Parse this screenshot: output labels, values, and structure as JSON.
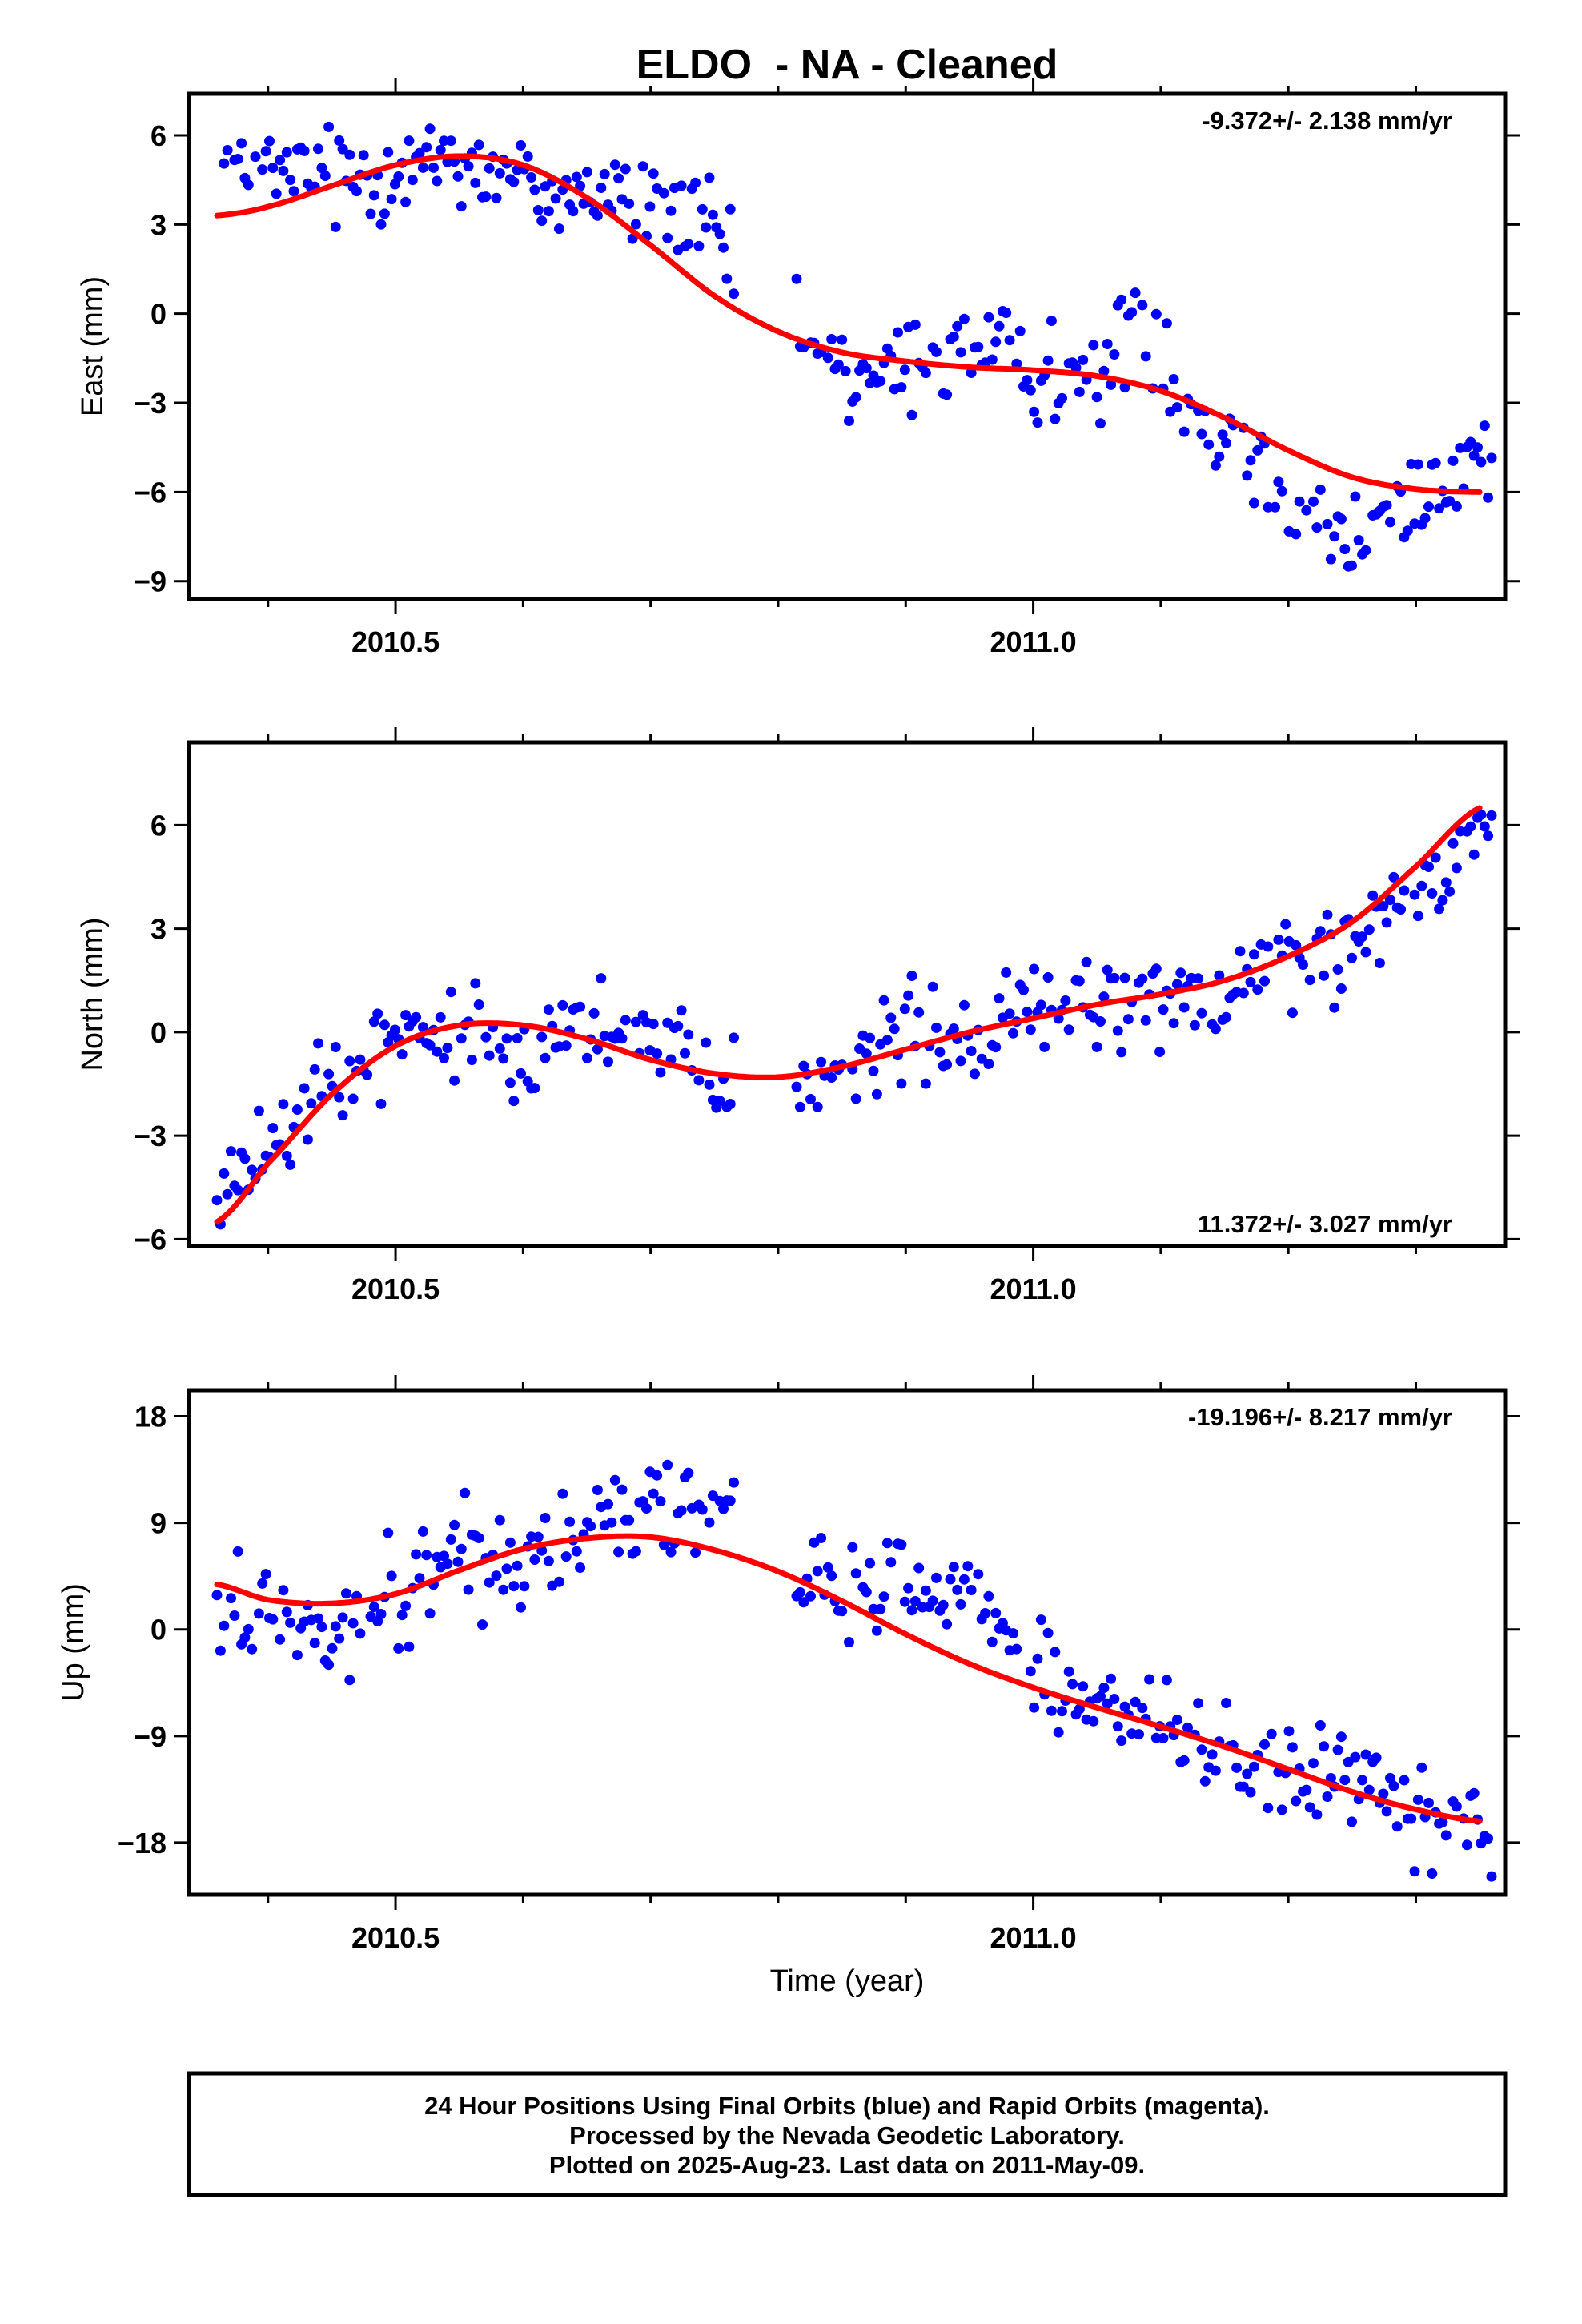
{
  "page": {
    "title": "ELDO  - NA - Cleaned",
    "x_axis_label": "Time (year)",
    "footer_lines": [
      "24 Hour Positions Using Final Orbits (blue) and Rapid Orbits (magenta).",
      "Processed by the Nevada Geodetic Laboratory.",
      "Plotted on 2025-Aug-23. Last data on 2011-May-09."
    ]
  },
  "colors": {
    "points": "#0000ff",
    "fit": "#ff0000",
    "frame": "#000000"
  },
  "chart_data": [
    {
      "type": "scatter",
      "name": "east",
      "ylabel": "East (mm)",
      "rate_text": "-9.372+/- 2.138 mm/yr",
      "rate_position": "top-right",
      "xlim": [
        2010.338,
        2011.37
      ],
      "ylim": [
        -9.6,
        7.4
      ],
      "xticks": [
        2010.5,
        2011.0
      ],
      "xtick_labels": [
        "2010.5",
        "2011.0"
      ],
      "xminor": [
        2010.4,
        2010.6,
        2010.7,
        2010.8,
        2010.9,
        2011.1,
        2011.2,
        2011.3
      ],
      "yticks": [
        6,
        3,
        0,
        -3,
        -6,
        -9
      ],
      "ytick_labels": [
        "6",
        "3",
        "0",
        "−3",
        "−6",
        "−9"
      ],
      "gaps": [
        [
          2010.767,
          2010.812
        ]
      ],
      "fit": {
        "x": [
          2010.36,
          2010.4,
          2010.45,
          2010.5,
          2010.55,
          2010.6,
          2010.65,
          2010.7,
          2010.75,
          2010.8,
          2010.85,
          2010.9,
          2010.95,
          2011.0,
          2011.05,
          2011.1,
          2011.15,
          2011.2,
          2011.25,
          2011.3,
          2011.35
        ],
        "y": [
          3.3,
          3.6,
          4.3,
          5.0,
          5.3,
          5.0,
          3.9,
          2.3,
          0.6,
          -0.6,
          -1.3,
          -1.6,
          -1.8,
          -1.9,
          -2.1,
          -2.6,
          -3.5,
          -4.6,
          -5.5,
          -5.9,
          -6.0
        ]
      },
      "anchors": {
        "x": [
          2010.36,
          2010.45,
          2010.5,
          2010.55,
          2010.6,
          2010.65,
          2010.7,
          2010.75,
          2010.8,
          2010.85,
          2010.9,
          2010.95,
          2011.0,
          2011.05,
          2011.08,
          2011.12,
          2011.15,
          2011.2,
          2011.25,
          2011.3,
          2011.35
        ],
        "y": [
          4.8,
          4.6,
          5.0,
          5.4,
          4.3,
          4.2,
          3.5,
          2.8,
          -0.5,
          -2.2,
          -2.0,
          -0.8,
          -1.8,
          -2.5,
          0.3,
          -2.8,
          -4.0,
          -6.0,
          -7.6,
          -6.2,
          -4.8
        ]
      },
      "scatter_amplitude": 1.4
    },
    {
      "type": "scatter",
      "name": "north",
      "ylabel": "North (mm)",
      "rate_text": "11.372+/- 3.027 mm/yr",
      "rate_position": "bottom-right",
      "xlim": [
        2010.338,
        2011.37
      ],
      "ylim": [
        -6.2,
        8.4
      ],
      "xticks": [
        2010.5,
        2011.0
      ],
      "xtick_labels": [
        "2010.5",
        "2011.0"
      ],
      "xminor": [
        2010.4,
        2010.6,
        2010.7,
        2010.8,
        2010.9,
        2011.1,
        2011.2,
        2011.3
      ],
      "yticks": [
        6,
        3,
        0,
        -3,
        -6
      ],
      "ytick_labels": [
        "6",
        "3",
        "0",
        "−3",
        "−6"
      ],
      "gaps": [
        [
          2010.767,
          2010.812
        ]
      ],
      "fit": {
        "x": [
          2010.36,
          2010.4,
          2010.45,
          2010.5,
          2010.55,
          2010.6,
          2010.65,
          2010.7,
          2010.75,
          2010.8,
          2010.85,
          2010.9,
          2010.95,
          2011.0,
          2011.05,
          2011.1,
          2011.15,
          2011.2,
          2011.25,
          2011.3,
          2011.35
        ],
        "y": [
          -5.5,
          -3.8,
          -1.8,
          -0.4,
          0.2,
          0.2,
          -0.2,
          -0.8,
          -1.2,
          -1.3,
          -1.0,
          -0.5,
          0.0,
          0.4,
          0.8,
          1.1,
          1.5,
          2.2,
          3.2,
          4.8,
          6.5
        ]
      },
      "anchors": {
        "x": [
          2010.36,
          2010.45,
          2010.5,
          2010.55,
          2010.6,
          2010.65,
          2010.7,
          2010.75,
          2010.8,
          2010.85,
          2010.9,
          2010.95,
          2011.0,
          2011.05,
          2011.1,
          2011.15,
          2011.2,
          2011.25,
          2011.3,
          2011.35
        ],
        "y": [
          -4.8,
          -1.5,
          -0.2,
          0.1,
          -0.4,
          0.4,
          0.0,
          -1.5,
          -0.9,
          -1.2,
          0.0,
          -0.5,
          0.6,
          1.0,
          0.9,
          0.6,
          2.4,
          2.0,
          4.0,
          5.5
        ]
      },
      "scatter_amplitude": 1.2
    },
    {
      "type": "scatter",
      "name": "up",
      "ylabel": "Up (mm)",
      "rate_text": "-19.196+/- 8.217 mm/yr",
      "rate_position": "top-right",
      "xlim": [
        2010.338,
        2011.37
      ],
      "ylim": [
        -22.4,
        20.2
      ],
      "xticks": [
        2010.5,
        2011.0
      ],
      "xtick_labels": [
        "2010.5",
        "2011.0"
      ],
      "xminor": [
        2010.4,
        2010.6,
        2010.7,
        2010.8,
        2010.9,
        2011.1,
        2011.2,
        2011.3
      ],
      "yticks": [
        18,
        9,
        0,
        -9,
        -18
      ],
      "ytick_labels": [
        "18",
        "9",
        "0",
        "−9",
        "−18"
      ],
      "gaps": [
        [
          2010.767,
          2010.812
        ]
      ],
      "fit": {
        "x": [
          2010.36,
          2010.4,
          2010.45,
          2010.5,
          2010.55,
          2010.6,
          2010.65,
          2010.7,
          2010.75,
          2010.8,
          2010.85,
          2010.9,
          2010.95,
          2011.0,
          2011.05,
          2011.1,
          2011.15,
          2011.2,
          2011.25,
          2011.3,
          2011.35
        ],
        "y": [
          3.8,
          2.5,
          2.2,
          3.0,
          5.0,
          6.8,
          7.7,
          7.8,
          6.7,
          4.9,
          2.4,
          -0.4,
          -2.9,
          -4.9,
          -6.6,
          -8.2,
          -9.9,
          -11.8,
          -13.7,
          -15.2,
          -16.2
        ]
      },
      "anchors": {
        "x": [
          2010.36,
          2010.45,
          2010.5,
          2010.55,
          2010.6,
          2010.65,
          2010.7,
          2010.75,
          2010.8,
          2010.85,
          2010.9,
          2010.95,
          2011.0,
          2011.05,
          2011.1,
          2011.15,
          2011.2,
          2011.25,
          2011.3,
          2011.35
        ],
        "y": [
          2.0,
          0.5,
          3.0,
          6.0,
          6.0,
          8.0,
          11.0,
          10.0,
          5.0,
          3.0,
          3.0,
          3.5,
          -3.5,
          -6.5,
          -8.5,
          -10.5,
          -12.0,
          -13.0,
          -15.0,
          -15.5
        ]
      },
      "scatter_amplitude": 3.6
    }
  ]
}
